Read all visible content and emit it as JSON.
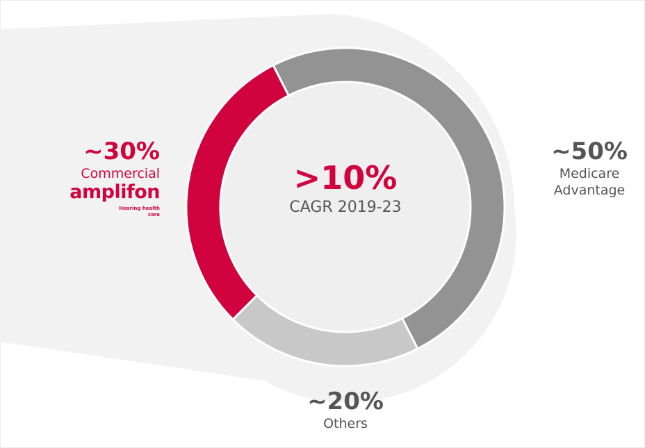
{
  "chart_data": {
    "type": "donut",
    "center_value": ">10%",
    "center_label": "CAGR 2019-23",
    "categories": [
      "Medicare Advantage",
      "Others",
      "Commercial"
    ],
    "values": [
      50,
      20,
      30
    ],
    "value_labels": [
      "~50%",
      "~20%",
      "~30%"
    ],
    "colors": [
      "#939393",
      "#c8c8c8",
      "#d0033f"
    ],
    "logo": {
      "name": "amplifon",
      "tagline": "Hearing health care"
    }
  }
}
